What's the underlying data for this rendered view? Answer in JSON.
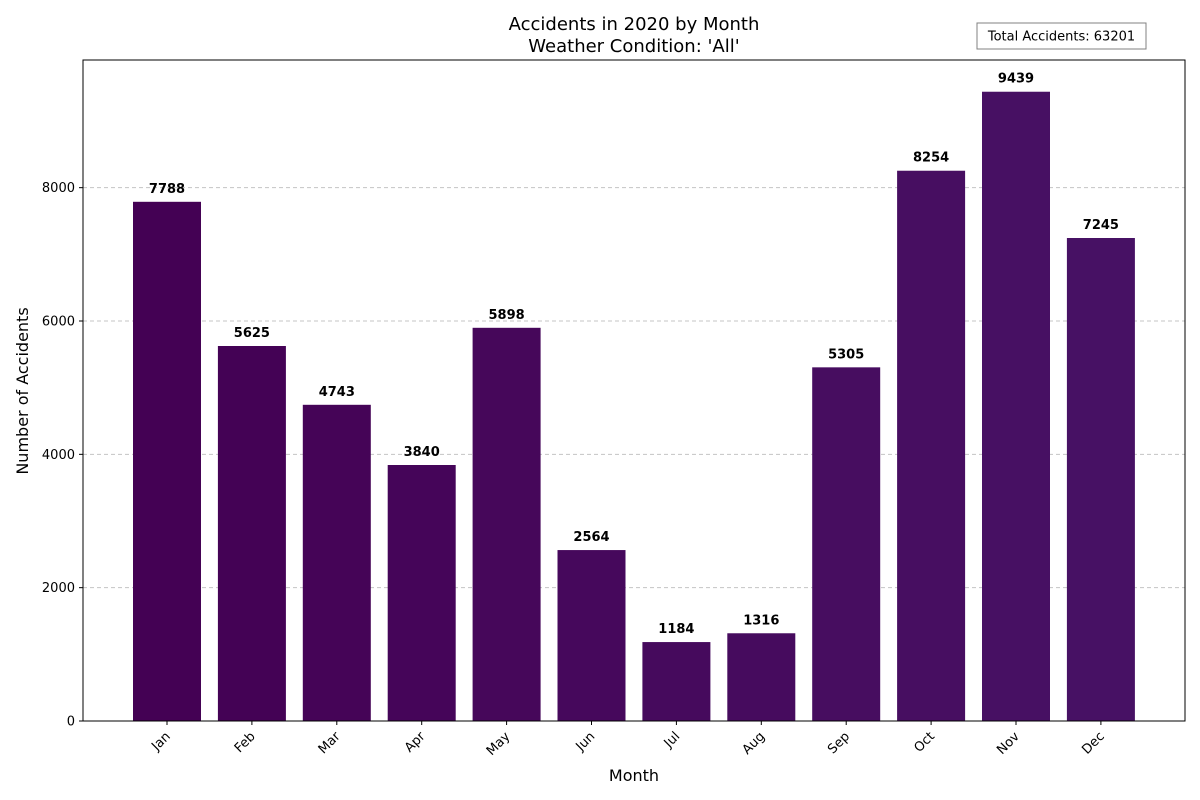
{
  "chart_data": {
    "type": "bar",
    "title": "Accidents in 2020 by Month",
    "subtitle": "Weather Condition: 'All'",
    "xlabel": "Month",
    "ylabel": "Number of Accidents",
    "categories": [
      "Jan",
      "Feb",
      "Mar",
      "Apr",
      "May",
      "Jun",
      "Jul",
      "Aug",
      "Sep",
      "Oct",
      "Nov",
      "Dec"
    ],
    "values": [
      7788,
      5625,
      4743,
      3840,
      5898,
      2564,
      1184,
      1316,
      5305,
      8254,
      9439,
      7245
    ],
    "ylim": [
      0,
      9915
    ],
    "yticks": [
      0,
      2000,
      4000,
      6000,
      8000
    ],
    "grid": "y",
    "annotation": "Total Accidents: 63201",
    "bar_colors": [
      "#440154",
      "#440255",
      "#450457",
      "#450559",
      "#46075a",
      "#46085c",
      "#460a5d",
      "#460b5e",
      "#470d60",
      "#470e61",
      "#471063",
      "#471164"
    ]
  }
}
